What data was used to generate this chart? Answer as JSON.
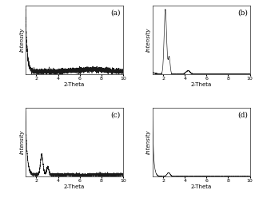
{
  "title": "",
  "xlabel": "2-Theta",
  "ylabel": "Intensity",
  "xlim": [
    1,
    10
  ],
  "subplot_labels": [
    "(a)",
    "(b)",
    "(c)",
    "(d)"
  ],
  "background_color": "#ffffff",
  "line_color": "#1a1a1a",
  "label_fontsize": 5,
  "tick_fontsize": 4.5,
  "panel_bg": "#ffffff"
}
